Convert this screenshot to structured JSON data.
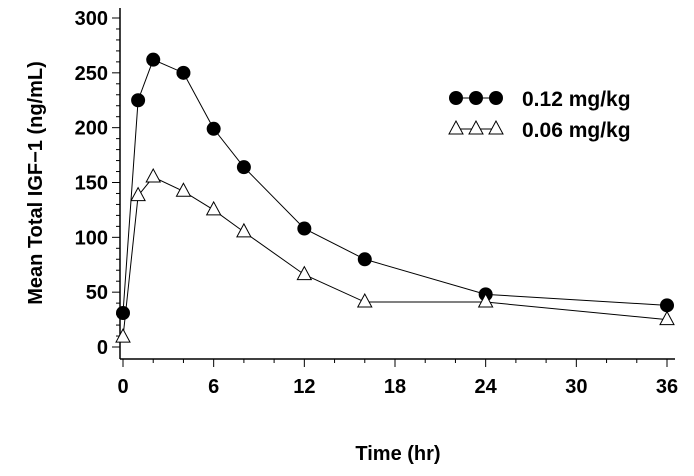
{
  "chart_data": {
    "type": "line",
    "title": "",
    "xlabel": "Time  (hr)",
    "ylabel": "Mean Total IGF−1  (ng/mL)",
    "xlim": [
      0,
      36
    ],
    "ylim": [
      0,
      300
    ],
    "xticks": [
      0,
      6,
      12,
      18,
      24,
      30,
      36
    ],
    "yticks": [
      0,
      50,
      100,
      150,
      200,
      250,
      300
    ],
    "grid": false,
    "legend_position": "top-right",
    "series": [
      {
        "name": "0.12  mg/kg",
        "marker": "filled-circle",
        "color": "#000000",
        "x": [
          0,
          1,
          2,
          4,
          6,
          8,
          12,
          16,
          24,
          36
        ],
        "y": [
          31,
          225,
          262,
          250,
          199,
          164,
          108,
          80,
          48,
          38
        ]
      },
      {
        "name": "0.06  mg/kg",
        "marker": "open-triangle",
        "color": "#000000",
        "x": [
          0,
          1,
          2,
          4,
          6,
          8,
          12,
          16,
          24,
          36
        ],
        "y": [
          9,
          138,
          155,
          142,
          125,
          105,
          66,
          41,
          41,
          25
        ]
      }
    ]
  }
}
